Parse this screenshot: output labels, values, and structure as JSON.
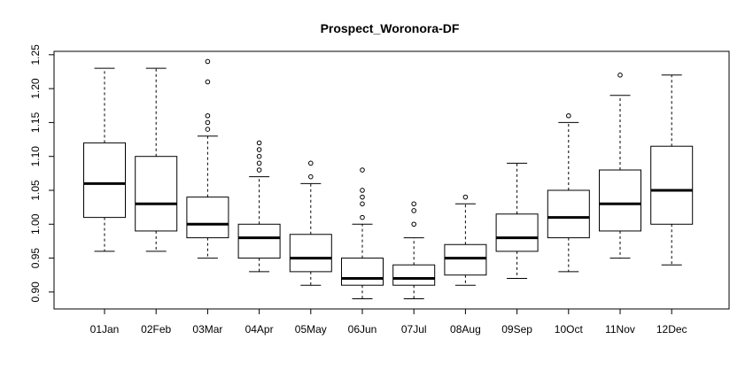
{
  "chart_data": {
    "type": "box",
    "title": "Prospect_Woronora-DF",
    "xlabel": "",
    "ylabel": "",
    "ylim": [
      0.875,
      1.255
    ],
    "yticks": [
      0.9,
      0.95,
      1.0,
      1.05,
      1.1,
      1.15,
      1.2,
      1.25
    ],
    "ytick_labels": [
      "0.90",
      "0.95",
      "1.00",
      "1.05",
      "1.10",
      "1.15",
      "1.20",
      "1.25"
    ],
    "grid": false,
    "legend": "none",
    "categories": [
      "01Jan",
      "02Feb",
      "03Mar",
      "04Apr",
      "05May",
      "06Jun",
      "07Jul",
      "08Aug",
      "09Sep",
      "10Oct",
      "11Nov",
      "12Dec"
    ],
    "boxes": [
      {
        "whisker_low": 0.96,
        "q1": 1.01,
        "median": 1.06,
        "q3": 1.12,
        "whisker_high": 1.23,
        "outliers": []
      },
      {
        "whisker_low": 0.96,
        "q1": 0.99,
        "median": 1.03,
        "q3": 1.1,
        "whisker_high": 1.23,
        "outliers": []
      },
      {
        "whisker_low": 0.95,
        "q1": 0.98,
        "median": 1.0,
        "q3": 1.04,
        "whisker_high": 1.13,
        "outliers": [
          1.14,
          1.15,
          1.16,
          1.21,
          1.24
        ]
      },
      {
        "whisker_low": 0.93,
        "q1": 0.95,
        "median": 0.98,
        "q3": 1.0,
        "whisker_high": 1.07,
        "outliers": [
          1.08,
          1.09,
          1.1,
          1.11,
          1.12
        ]
      },
      {
        "whisker_low": 0.91,
        "q1": 0.93,
        "median": 0.95,
        "q3": 0.985,
        "whisker_high": 1.06,
        "outliers": [
          1.07,
          1.09
        ]
      },
      {
        "whisker_low": 0.89,
        "q1": 0.91,
        "median": 0.92,
        "q3": 0.95,
        "whisker_high": 1.0,
        "outliers": [
          1.01,
          1.03,
          1.04,
          1.05,
          1.08
        ]
      },
      {
        "whisker_low": 0.89,
        "q1": 0.91,
        "median": 0.92,
        "q3": 0.94,
        "whisker_high": 0.98,
        "outliers": [
          1.0,
          1.02,
          1.03
        ]
      },
      {
        "whisker_low": 0.91,
        "q1": 0.925,
        "median": 0.95,
        "q3": 0.97,
        "whisker_high": 1.03,
        "outliers": [
          1.04
        ]
      },
      {
        "whisker_low": 0.92,
        "q1": 0.96,
        "median": 0.98,
        "q3": 1.015,
        "whisker_high": 1.09,
        "outliers": []
      },
      {
        "whisker_low": 0.93,
        "q1": 0.98,
        "median": 1.01,
        "q3": 1.05,
        "whisker_high": 1.15,
        "outliers": [
          1.16
        ]
      },
      {
        "whisker_low": 0.95,
        "q1": 0.99,
        "median": 1.03,
        "q3": 1.08,
        "whisker_high": 1.19,
        "outliers": [
          1.22
        ]
      },
      {
        "whisker_low": 0.94,
        "q1": 1.0,
        "median": 1.05,
        "q3": 1.115,
        "whisker_high": 1.22,
        "outliers": []
      }
    ],
    "colors": {
      "box_stroke": "#000000",
      "box_fill": "#ffffff",
      "median": "#000000",
      "background": "#ffffff"
    }
  }
}
